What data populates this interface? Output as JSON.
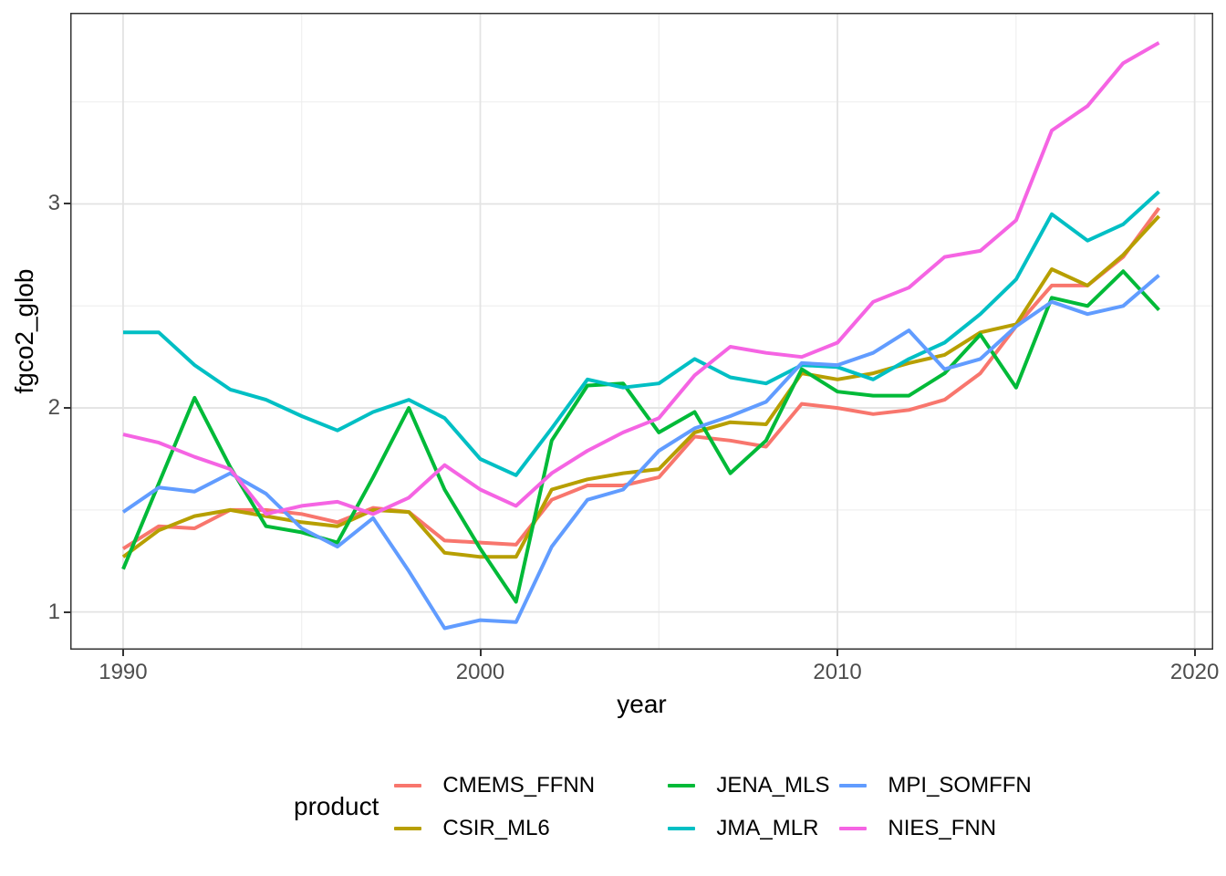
{
  "figure": {
    "background": "#FFFFFF",
    "panel_border_color": "#333333",
    "major_grid_color": "#E3E3E3",
    "minor_grid_color": "#EFEFEF",
    "tick_color": "#333333",
    "tick_label_color": "#4D4D4D"
  },
  "chart_data": {
    "type": "line",
    "title": "",
    "xlabel": "year",
    "ylabel": "fgco2_glob",
    "legend_title": "product",
    "legend_position": "bottom",
    "grid": true,
    "xlim": [
      1988.52,
      2020.52
    ],
    "ylim": [
      0.815,
      3.937
    ],
    "x_ticks": [
      1990,
      2000,
      2010,
      2020
    ],
    "x_minor_ticks": [
      1995,
      2005,
      2015
    ],
    "y_ticks": [
      1,
      2,
      3
    ],
    "y_minor_ticks": [
      1.5,
      2.5,
      3.5
    ],
    "x": [
      1990,
      1991,
      1992,
      1993,
      1994,
      1995,
      1996,
      1997,
      1998,
      1999,
      2000,
      2001,
      2002,
      2003,
      2004,
      2005,
      2006,
      2007,
      2008,
      2009,
      2010,
      2011,
      2012,
      2013,
      2014,
      2015,
      2016,
      2017,
      2018,
      2019
    ],
    "series": [
      {
        "name": "CMEMS_FFNN",
        "color": "#F8766D",
        "values": [
          1.31,
          1.42,
          1.41,
          1.5,
          1.5,
          1.48,
          1.44,
          1.51,
          1.49,
          1.35,
          1.34,
          1.33,
          1.55,
          1.62,
          1.62,
          1.66,
          1.86,
          1.84,
          1.81,
          2.02,
          2.0,
          1.97,
          1.99,
          2.04,
          2.17,
          2.4,
          2.6,
          2.6,
          2.74,
          2.98
        ]
      },
      {
        "name": "CSIR_ML6",
        "color": "#B79F00",
        "values": [
          1.27,
          1.4,
          1.47,
          1.5,
          1.47,
          1.44,
          1.42,
          1.5,
          1.49,
          1.29,
          1.27,
          1.27,
          1.6,
          1.65,
          1.68,
          1.7,
          1.88,
          1.93,
          1.92,
          2.17,
          2.14,
          2.17,
          2.22,
          2.26,
          2.37,
          2.41,
          2.68,
          2.6,
          2.75,
          2.94
        ]
      },
      {
        "name": "JENA_MLS",
        "color": "#00BA38",
        "values": [
          1.21,
          1.63,
          2.05,
          1.71,
          1.42,
          1.39,
          1.34,
          1.66,
          2.0,
          1.6,
          1.31,
          1.05,
          1.84,
          2.11,
          2.12,
          1.88,
          1.98,
          1.68,
          1.84,
          2.19,
          2.08,
          2.06,
          2.06,
          2.17,
          2.36,
          2.1,
          2.54,
          2.5,
          2.67,
          2.48
        ]
      },
      {
        "name": "JMA_MLR",
        "color": "#00BFC4",
        "values": [
          2.37,
          2.37,
          2.21,
          2.09,
          2.04,
          1.96,
          1.89,
          1.98,
          2.04,
          1.95,
          1.75,
          1.67,
          1.9,
          2.14,
          2.1,
          2.12,
          2.24,
          2.15,
          2.12,
          2.21,
          2.2,
          2.14,
          2.24,
          2.32,
          2.46,
          2.63,
          2.95,
          2.82,
          2.9,
          3.06
        ]
      },
      {
        "name": "MPI_SOMFFN",
        "color": "#619CFF",
        "values": [
          1.49,
          1.61,
          1.59,
          1.68,
          1.58,
          1.41,
          1.32,
          1.46,
          1.2,
          0.92,
          0.96,
          0.95,
          1.32,
          1.55,
          1.6,
          1.79,
          1.9,
          1.96,
          2.03,
          2.22,
          2.21,
          2.27,
          2.38,
          2.19,
          2.24,
          2.4,
          2.52,
          2.46,
          2.5,
          2.65
        ]
      },
      {
        "name": "NIES_FNN",
        "color": "#F564E3",
        "values": [
          1.87,
          1.83,
          1.76,
          1.7,
          1.48,
          1.52,
          1.54,
          1.48,
          1.56,
          1.72,
          1.6,
          1.52,
          1.68,
          1.79,
          1.88,
          1.95,
          2.16,
          2.3,
          2.27,
          2.25,
          2.32,
          2.52,
          2.59,
          2.74,
          2.77,
          2.92,
          3.36,
          3.48,
          3.69,
          3.79
        ]
      }
    ]
  }
}
